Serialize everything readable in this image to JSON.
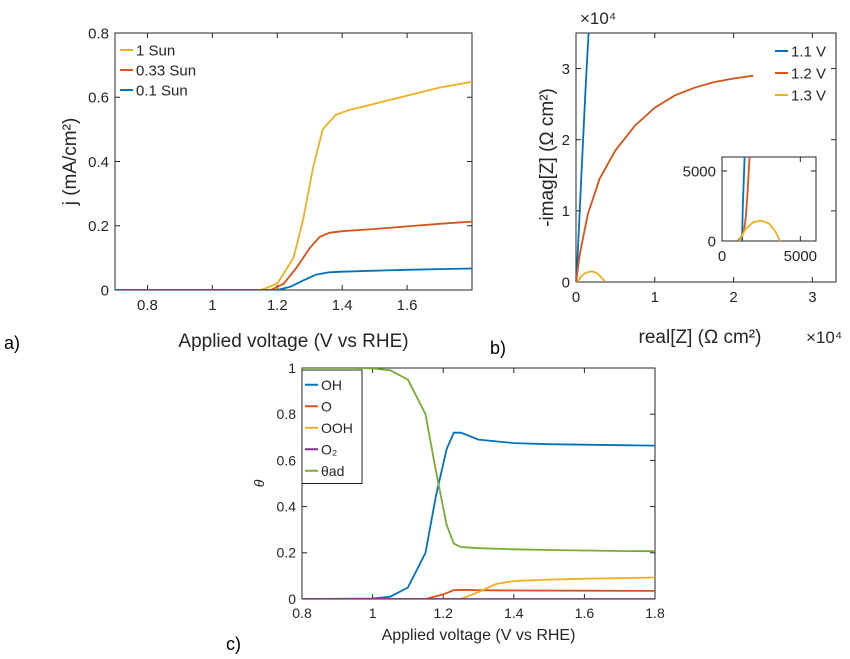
{
  "panel_labels": {
    "a": "a)",
    "b": "b)",
    "c": "c)"
  },
  "colors": {
    "blue": "#0072bd",
    "orange": "#d95319",
    "yellow": "#edb120",
    "purple": "#7e2f8e",
    "green": "#77ac30"
  },
  "chart_data": [
    {
      "id": "a",
      "type": "line",
      "xlabel": "Applied voltage (V vs RHE)",
      "ylabel": "j (mA/cm²)",
      "xlim": [
        0.7,
        1.8
      ],
      "ylim": [
        0,
        0.8
      ],
      "xticks": [
        0.8,
        1,
        1.2,
        1.4,
        1.6
      ],
      "yticks": [
        0,
        0.2,
        0.4,
        0.6,
        0.8
      ],
      "grid": false,
      "legend": "top-left",
      "series": [
        {
          "name": "1 Sun",
          "color": "#edb120",
          "x": [
            0.7,
            1.15,
            1.2,
            1.25,
            1.28,
            1.31,
            1.34,
            1.38,
            1.42,
            1.5,
            1.6,
            1.7,
            1.8
          ],
          "y": [
            0,
            0,
            0.02,
            0.1,
            0.22,
            0.38,
            0.5,
            0.545,
            0.56,
            0.58,
            0.605,
            0.63,
            0.648
          ]
        },
        {
          "name": "0.33 Sun",
          "color": "#d95319",
          "x": [
            0.7,
            1.18,
            1.22,
            1.26,
            1.3,
            1.33,
            1.36,
            1.4,
            1.5,
            1.6,
            1.7,
            1.8
          ],
          "y": [
            0,
            0,
            0.02,
            0.07,
            0.13,
            0.165,
            0.178,
            0.183,
            0.19,
            0.198,
            0.206,
            0.213
          ]
        },
        {
          "name": "0.1 Sun",
          "color": "#0072bd",
          "x": [
            0.7,
            1.2,
            1.24,
            1.28,
            1.32,
            1.36,
            1.4,
            1.5,
            1.6,
            1.7,
            1.8
          ],
          "y": [
            0,
            0,
            0.01,
            0.03,
            0.048,
            0.055,
            0.057,
            0.06,
            0.063,
            0.065,
            0.067
          ]
        }
      ]
    },
    {
      "id": "b",
      "type": "line",
      "xlabel": "real[Z] (Ω cm²)",
      "ylabel": "-imag[Z] (Ω cm²)",
      "x_multiplier": "×10⁴",
      "y_multiplier": "×10⁴",
      "xlim": [
        0,
        3.3
      ],
      "ylim": [
        0,
        3.5
      ],
      "xticks": [
        0,
        1,
        2,
        3
      ],
      "yticks": [
        0,
        1,
        2,
        3
      ],
      "grid": false,
      "legend": "top-right",
      "series": [
        {
          "name": "1.1 V",
          "color": "#0072bd",
          "x": [
            0.005,
            0.03,
            0.06,
            0.09,
            0.12,
            0.14,
            0.16
          ],
          "y": [
            0,
            0.6,
            1.3,
            2.0,
            2.7,
            3.1,
            3.5
          ]
        },
        {
          "name": "1.2 V",
          "color": "#d95319",
          "x": [
            0,
            0.05,
            0.15,
            0.3,
            0.5,
            0.75,
            1.0,
            1.25,
            1.5,
            1.75,
            2.0,
            2.25
          ],
          "y": [
            0,
            0.4,
            0.95,
            1.45,
            1.85,
            2.2,
            2.45,
            2.62,
            2.73,
            2.81,
            2.86,
            2.9
          ]
        },
        {
          "name": "1.3 V",
          "color": "#edb120",
          "x": [
            0.02,
            0.06,
            0.12,
            0.2,
            0.26,
            0.31,
            0.35,
            0.37
          ],
          "y": [
            0,
            0.07,
            0.13,
            0.15,
            0.13,
            0.08,
            0.03,
            0
          ]
        }
      ],
      "inset": {
        "xlim": [
          0,
          6000
        ],
        "ylim": [
          0,
          6000
        ],
        "xticks": [
          0,
          5000
        ],
        "yticks": [
          0,
          5000
        ],
        "series": [
          {
            "name": "1.1 V",
            "color": "#0072bd",
            "x": [
              1280,
              1300,
              1330,
              1370,
              1410,
              1440
            ],
            "y": [
              0,
              1200,
              2500,
              3800,
              5000,
              6000
            ]
          },
          {
            "name": "1.2 V",
            "color": "#d95319",
            "x": [
              1000,
              1200,
              1400,
              1520,
              1620,
              1700,
              1760
            ],
            "y": [
              0,
              250,
              700,
              1700,
              3300,
              4800,
              6000
            ]
          },
          {
            "name": "1.3 V",
            "color": "#edb120",
            "x": [
              1100,
              1500,
              2000,
              2500,
              3000,
              3400,
              3700
            ],
            "y": [
              0,
              850,
              1350,
              1450,
              1250,
              700,
              0
            ]
          }
        ]
      }
    },
    {
      "id": "c",
      "type": "line",
      "xlabel": "Applied voltage (V vs RHE)",
      "ylabel": "θ",
      "xlim": [
        0.8,
        1.8
      ],
      "ylim": [
        0,
        1
      ],
      "xticks": [
        0.8,
        1,
        1.2,
        1.4,
        1.6,
        1.8
      ],
      "yticks": [
        0,
        0.2,
        0.4,
        0.6,
        0.8,
        1
      ],
      "grid": false,
      "legend": "top-left",
      "series": [
        {
          "name": "OH",
          "color": "#0072bd",
          "x": [
            0.8,
            1.0,
            1.05,
            1.1,
            1.15,
            1.18,
            1.21,
            1.23,
            1.25,
            1.3,
            1.4,
            1.5,
            1.6,
            1.7,
            1.8
          ],
          "y": [
            0,
            0.002,
            0.01,
            0.05,
            0.2,
            0.45,
            0.65,
            0.72,
            0.72,
            0.69,
            0.675,
            0.67,
            0.668,
            0.666,
            0.664
          ]
        },
        {
          "name": "O",
          "color": "#d95319",
          "x": [
            0.8,
            1.15,
            1.2,
            1.23,
            1.26,
            1.3,
            1.4,
            1.6,
            1.8
          ],
          "y": [
            0,
            0,
            0.02,
            0.038,
            0.04,
            0.038,
            0.037,
            0.036,
            0.035
          ]
        },
        {
          "name": "OOH",
          "color": "#edb120",
          "x": [
            0.8,
            1.25,
            1.3,
            1.35,
            1.4,
            1.5,
            1.6,
            1.7,
            1.8
          ],
          "y": [
            0,
            0,
            0.03,
            0.065,
            0.078,
            0.084,
            0.088,
            0.09,
            0.093
          ]
        },
        {
          "name": "O₂",
          "color": "#7e2f8e",
          "x": [
            0.8,
            1.8
          ],
          "y": [
            0,
            0
          ]
        },
        {
          "name": "θad",
          "color": "#77ac30",
          "x": [
            0.8,
            0.95,
            1.0,
            1.05,
            1.1,
            1.15,
            1.18,
            1.21,
            1.23,
            1.25,
            1.3,
            1.4,
            1.5,
            1.6,
            1.7,
            1.8
          ],
          "y": [
            1,
            1,
            0.998,
            0.99,
            0.95,
            0.8,
            0.55,
            0.32,
            0.24,
            0.225,
            0.22,
            0.215,
            0.212,
            0.21,
            0.208,
            0.207
          ]
        }
      ]
    }
  ]
}
